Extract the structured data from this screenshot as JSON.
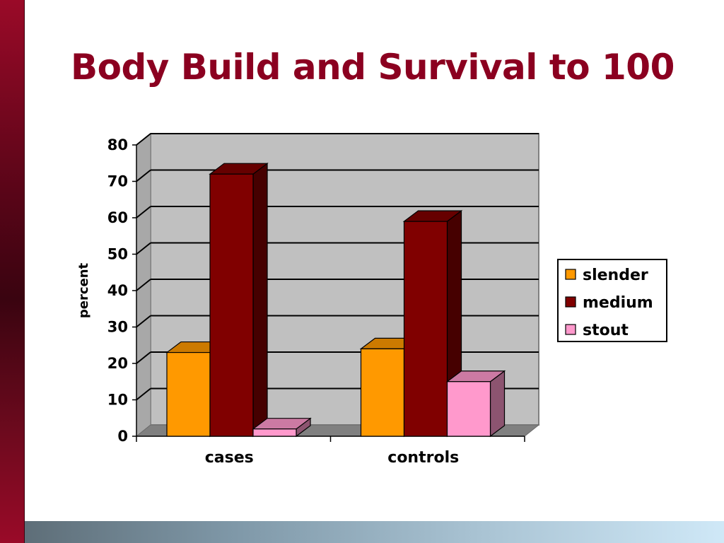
{
  "slide": {
    "title": "Body Build and Survival to 100"
  },
  "chart_data": {
    "type": "bar",
    "categories": [
      "cases",
      "controls"
    ],
    "series": [
      {
        "name": "slender",
        "values": [
          23,
          24
        ],
        "color": "#ff9900"
      },
      {
        "name": "medium",
        "values": [
          72,
          59
        ],
        "color": "#800000"
      },
      {
        "name": "stout",
        "values": [
          2,
          15
        ],
        "color": "#ff99cc"
      }
    ],
    "ylabel": "percent",
    "xlabel": "",
    "ylim": [
      0,
      80
    ],
    "yticks": [
      0,
      10,
      20,
      30,
      40,
      50,
      60,
      70,
      80
    ],
    "grid": true,
    "legend": "right",
    "style": "3d",
    "plot_background": "#c0c0c0",
    "floor_color": "#808080"
  },
  "colors": {
    "accent": "#8b0020"
  }
}
